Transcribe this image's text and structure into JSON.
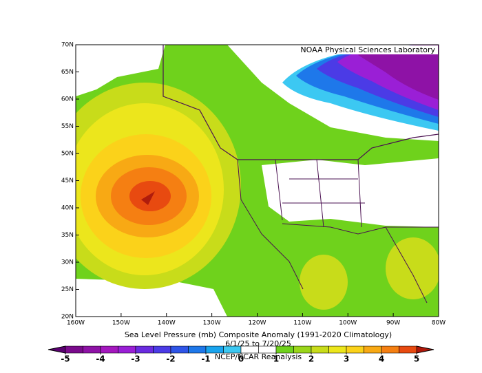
{
  "map": {
    "title": "Sea Level Pressure (mb) Composite Anomaly (1991-2020 Climatology)",
    "date_range": "6/1/25  to 7/20/25",
    "credit": "NCEP/NCAR Reanalysis",
    "source": "NOAA Physical Sciences Laboratory",
    "xlim": [
      -160,
      -80
    ],
    "ylim": [
      20,
      70
    ],
    "xticks": [
      {
        "value": -160,
        "label": "160W"
      },
      {
        "value": -150,
        "label": "150W"
      },
      {
        "value": -140,
        "label": "140W"
      },
      {
        "value": -130,
        "label": "130W"
      },
      {
        "value": -120,
        "label": "120W"
      },
      {
        "value": -110,
        "label": "110W"
      },
      {
        "value": -100,
        "label": "100W"
      },
      {
        "value": -90,
        "label": "90W"
      },
      {
        "value": -80,
        "label": "80W"
      }
    ],
    "yticks": [
      {
        "value": 20,
        "label": "20N"
      },
      {
        "value": 25,
        "label": "25N"
      },
      {
        "value": 30,
        "label": "30N"
      },
      {
        "value": 35,
        "label": "35N"
      },
      {
        "value": 40,
        "label": "40N"
      },
      {
        "value": 45,
        "label": "45N"
      },
      {
        "value": 50,
        "label": "50N"
      },
      {
        "value": 55,
        "label": "55N"
      },
      {
        "value": 60,
        "label": "60N"
      },
      {
        "value": 65,
        "label": "65N"
      },
      {
        "value": 70,
        "label": "70N"
      }
    ],
    "colorbar": {
      "lim": [
        -5,
        5
      ],
      "ticks": [
        -5,
        -4,
        -3,
        -2,
        -1,
        0,
        1,
        2,
        3,
        4,
        5
      ],
      "colors": [
        "#7a0a8c",
        "#8e12a6",
        "#a418be",
        "#9a1fd6",
        "#6a2be0",
        "#4b3be6",
        "#2f55e8",
        "#1e78ea",
        "#19a4ee",
        "#3cc8f2",
        "#ffffff",
        "#ffffff",
        "#6fd21c",
        "#9ad61a",
        "#c8dc1a",
        "#ece61c",
        "#fbd21a",
        "#f8a914",
        "#f57f12",
        "#e84a10"
      ]
    }
  }
}
